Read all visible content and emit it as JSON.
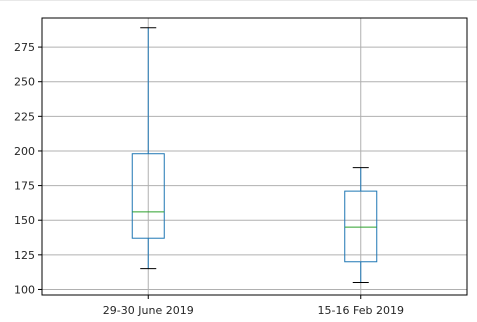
{
  "chart_data": {
    "type": "box",
    "categories": [
      "29-30 June 2019",
      "15-16 Feb 2019"
    ],
    "boxes": [
      {
        "whisker_low": 115,
        "q1": 137,
        "median": 156,
        "q3": 198,
        "whisker_high": 289
      },
      {
        "whisker_low": 105,
        "q1": 120,
        "median": 145,
        "q3": 171,
        "whisker_high": 188
      }
    ],
    "ylim": [
      96,
      296
    ],
    "yticks": [
      100,
      125,
      150,
      175,
      200,
      225,
      250,
      275
    ],
    "grid": true,
    "colors": {
      "box": "#1f77b4",
      "median": "#2ca02c",
      "caps": "#000000",
      "grid": "#b0b0b0",
      "axes": "#000000"
    }
  }
}
